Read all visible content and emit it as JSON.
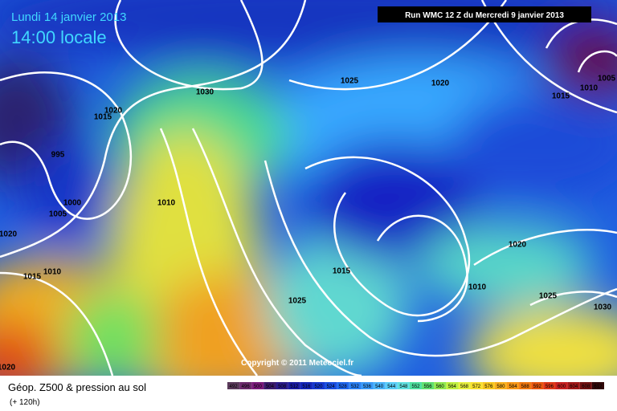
{
  "header": {
    "date": "Lundi 14 janvier 2013",
    "time": "14:00 locale",
    "run": "Run WMC 12 Z du Mercredi 9 janvier 2013"
  },
  "copyright": "Copyright © 2011 Meteociel.fr",
  "footer": {
    "title": "Géop. Z500 & pression au sol",
    "subtitle": "(+ 120h)"
  },
  "isobar_labels": [
    1030,
    1025,
    1020,
    1015,
    1010,
    1005,
    1020,
    1015,
    995,
    1000,
    1005,
    1010,
    1020,
    1015,
    1010,
    1015,
    1025,
    1020,
    1010,
    1025,
    1030,
    1020
  ],
  "scale": {
    "labels": [
      492,
      496,
      500,
      504,
      508,
      512,
      516,
      520,
      524,
      528,
      532,
      536,
      540,
      544,
      548,
      552,
      556,
      560,
      564,
      568,
      572,
      576,
      580,
      584,
      588,
      592,
      596,
      600,
      604,
      608,
      612
    ],
    "colors": [
      "#5a3a5a",
      "#6a2a6a",
      "#7a1a7a",
      "#3a1a6a",
      "#2a1a8a",
      "#1a1aa0",
      "#1426b8",
      "#1638d0",
      "#1a4ee0",
      "#1e66ec",
      "#2a80f4",
      "#3a9af8",
      "#4ab4fa",
      "#5acef8",
      "#60e0e0",
      "#50e0a0",
      "#60e070",
      "#90e850",
      "#c0f040",
      "#e8f040",
      "#f8e030",
      "#f8c820",
      "#f8b020",
      "#f89818",
      "#f07810",
      "#e85810",
      "#e03818",
      "#c82020",
      "#a01818",
      "#701010",
      "#300808"
    ]
  }
}
